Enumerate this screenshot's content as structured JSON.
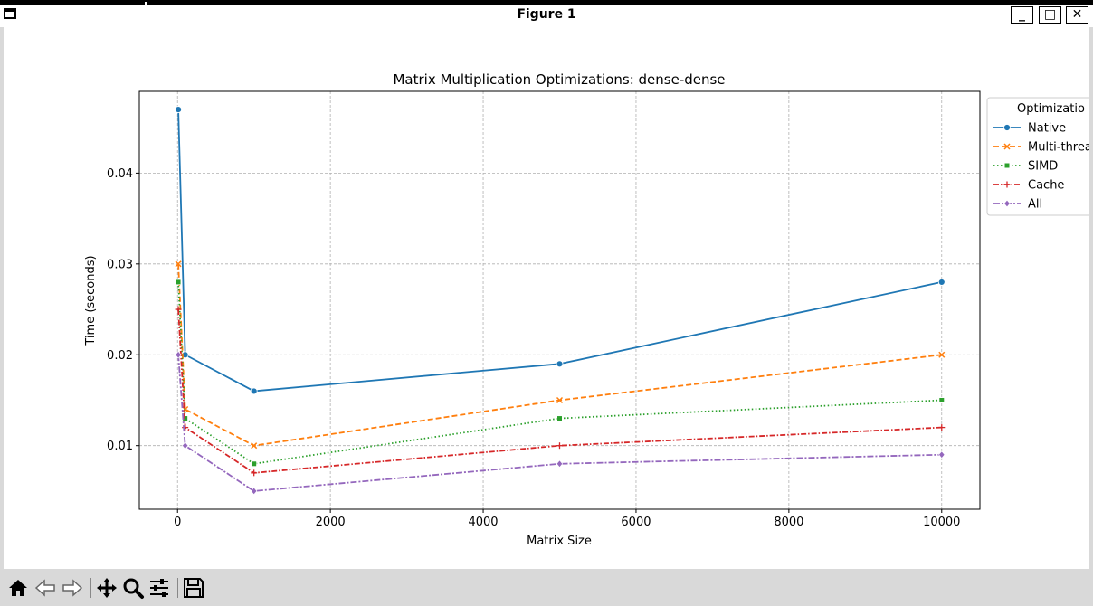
{
  "window": {
    "title": "Figure 1",
    "minimize_label": "_",
    "maximize_label": "□",
    "close_label": "✕"
  },
  "toolbar": {
    "items": [
      {
        "name": "home-icon"
      },
      {
        "name": "back-icon"
      },
      {
        "name": "forward-icon"
      },
      {
        "name": "pan-icon"
      },
      {
        "name": "zoom-icon"
      },
      {
        "name": "configure-subplots-icon"
      },
      {
        "name": "save-icon"
      }
    ]
  },
  "chart_data": {
    "type": "line",
    "title": "Matrix Multiplication Optimizations: dense-dense",
    "xlabel": "Matrix Size",
    "ylabel": "Time (seconds)",
    "xlim": [
      -500,
      10500
    ],
    "ylim": [
      0.003,
      0.049
    ],
    "xticks": [
      0,
      2000,
      4000,
      6000,
      8000,
      10000
    ],
    "xtick_labels": [
      "0",
      "2000",
      "4000",
      "6000",
      "8000",
      "10000"
    ],
    "yticks": [
      0.01,
      0.02,
      0.03,
      0.04
    ],
    "ytick_labels": [
      "0.01",
      "0.02",
      "0.03",
      "0.04"
    ],
    "grid": true,
    "legend": {
      "title": "Optimizatio",
      "placement": "outside-right"
    },
    "x": [
      10,
      100,
      1000,
      5000,
      10000
    ],
    "series": [
      {
        "name": "Native",
        "legend_label": "Native",
        "color": "#1f77b4",
        "marker": "circle",
        "dash": "",
        "values": [
          0.047,
          0.02,
          0.016,
          0.019,
          0.028
        ]
      },
      {
        "name": "Multi-threaded",
        "legend_label": "Multi-threa",
        "color": "#ff7f0e",
        "marker": "x",
        "dash": "6,3",
        "values": [
          0.03,
          0.014,
          0.01,
          0.015,
          0.02
        ]
      },
      {
        "name": "SIMD",
        "legend_label": "SIMD",
        "color": "#2ca02c",
        "marker": "square",
        "dash": "1.5,2.5",
        "values": [
          0.028,
          0.013,
          0.008,
          0.013,
          0.015
        ]
      },
      {
        "name": "Cache",
        "legend_label": "Cache",
        "color": "#d62728",
        "marker": "plus",
        "dash": "6,2,1.5,2",
        "values": [
          0.025,
          0.012,
          0.007,
          0.01,
          0.012
        ]
      },
      {
        "name": "All",
        "legend_label": "All",
        "color": "#9467bd",
        "marker": "diamond",
        "dash": "7,2,2,2",
        "values": [
          0.02,
          0.01,
          0.005,
          0.008,
          0.009
        ]
      }
    ]
  }
}
